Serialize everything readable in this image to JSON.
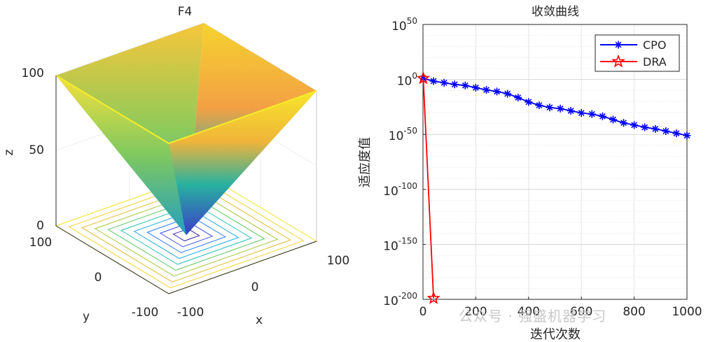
{
  "chart_data": [
    {
      "type": "surface3d",
      "title": "F4",
      "xlabel": "x",
      "ylabel": "y",
      "zlabel": "z",
      "x_ticks": [
        "-100",
        "0",
        "100"
      ],
      "y_ticks": [
        "-100",
        "0",
        "100"
      ],
      "z_ticks": [
        "0",
        "50",
        "100"
      ],
      "xlim": [
        -100,
        100
      ],
      "ylim": [
        -100,
        100
      ],
      "zlim": [
        0,
        100
      ],
      "colormap": "parula",
      "contours_on_floor": true
    },
    {
      "type": "line",
      "title": "收敛曲线",
      "xlabel": "迭代次数",
      "ylabel": "适应度值",
      "yscale": "log",
      "xlim": [
        0,
        1000
      ],
      "ylim_exponent": [
        -200,
        50
      ],
      "x_ticks": [
        "0",
        "200",
        "400",
        "600",
        "800",
        "1000"
      ],
      "y_ticks": [
        {
          "base": "10",
          "exp": "50",
          "value_exp": 50
        },
        {
          "base": "10",
          "exp": "0",
          "value_exp": 0
        },
        {
          "base": "10",
          "exp": "-50",
          "value_exp": -50
        },
        {
          "base": "10",
          "exp": "-100",
          "value_exp": -100
        },
        {
          "base": "10",
          "exp": "-150",
          "value_exp": -150
        },
        {
          "base": "10",
          "exp": "-200",
          "value_exp": -200
        }
      ],
      "grid": true,
      "legend_position": "top-right",
      "series": [
        {
          "name": "CPO",
          "color": "#0000ff",
          "marker": "asterisk",
          "x": [
            1,
            40,
            80,
            120,
            160,
            200,
            240,
            280,
            320,
            360,
            400,
            440,
            480,
            520,
            560,
            600,
            640,
            680,
            720,
            760,
            800,
            840,
            880,
            920,
            960,
            1000
          ],
          "y_exp": [
            1,
            -1.5,
            -3,
            -4.5,
            -5.5,
            -7.5,
            -9.5,
            -11,
            -13,
            -16.5,
            -20.5,
            -23.5,
            -25.5,
            -26.5,
            -28.5,
            -30.5,
            -31.5,
            -33.5,
            -36.5,
            -39.5,
            -41.5,
            -43.5,
            -45,
            -47,
            -49,
            -51
          ]
        },
        {
          "name": "DRA",
          "color": "#ff0000",
          "marker": "pentagram",
          "x": [
            1,
            40
          ],
          "y_exp": [
            1,
            -199
          ]
        }
      ]
    }
  ],
  "watermark": "公众号 · 强盛机器学习"
}
